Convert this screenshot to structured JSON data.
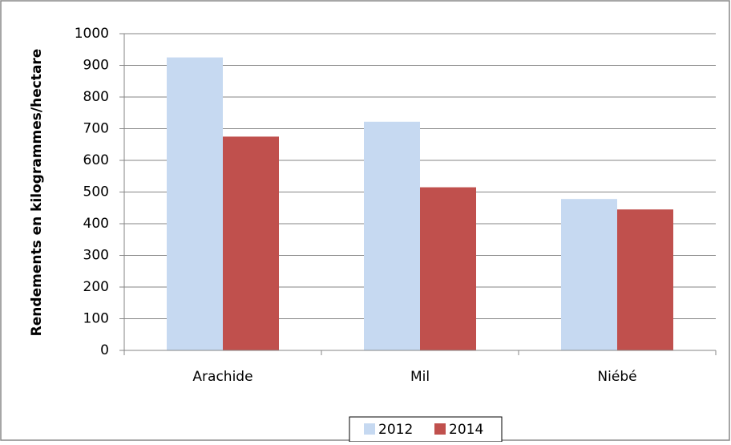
{
  "chart_data": {
    "type": "bar",
    "y_label": "Rendements en kilogrammes/hectare",
    "categories": [
      "Arachide",
      "Mil",
      "Niébé"
    ],
    "series": [
      {
        "name": "2012",
        "color": "#c6d9f1",
        "values": [
          925,
          722,
          478
        ]
      },
      {
        "name": "2014",
        "color": "#c0504d",
        "values": [
          675,
          515,
          445
        ]
      }
    ],
    "ylim": [
      0,
      1000
    ],
    "yticks": [
      0,
      100,
      200,
      300,
      400,
      500,
      600,
      700,
      800,
      900,
      1000
    ],
    "grid": true,
    "legend": "bottom"
  }
}
